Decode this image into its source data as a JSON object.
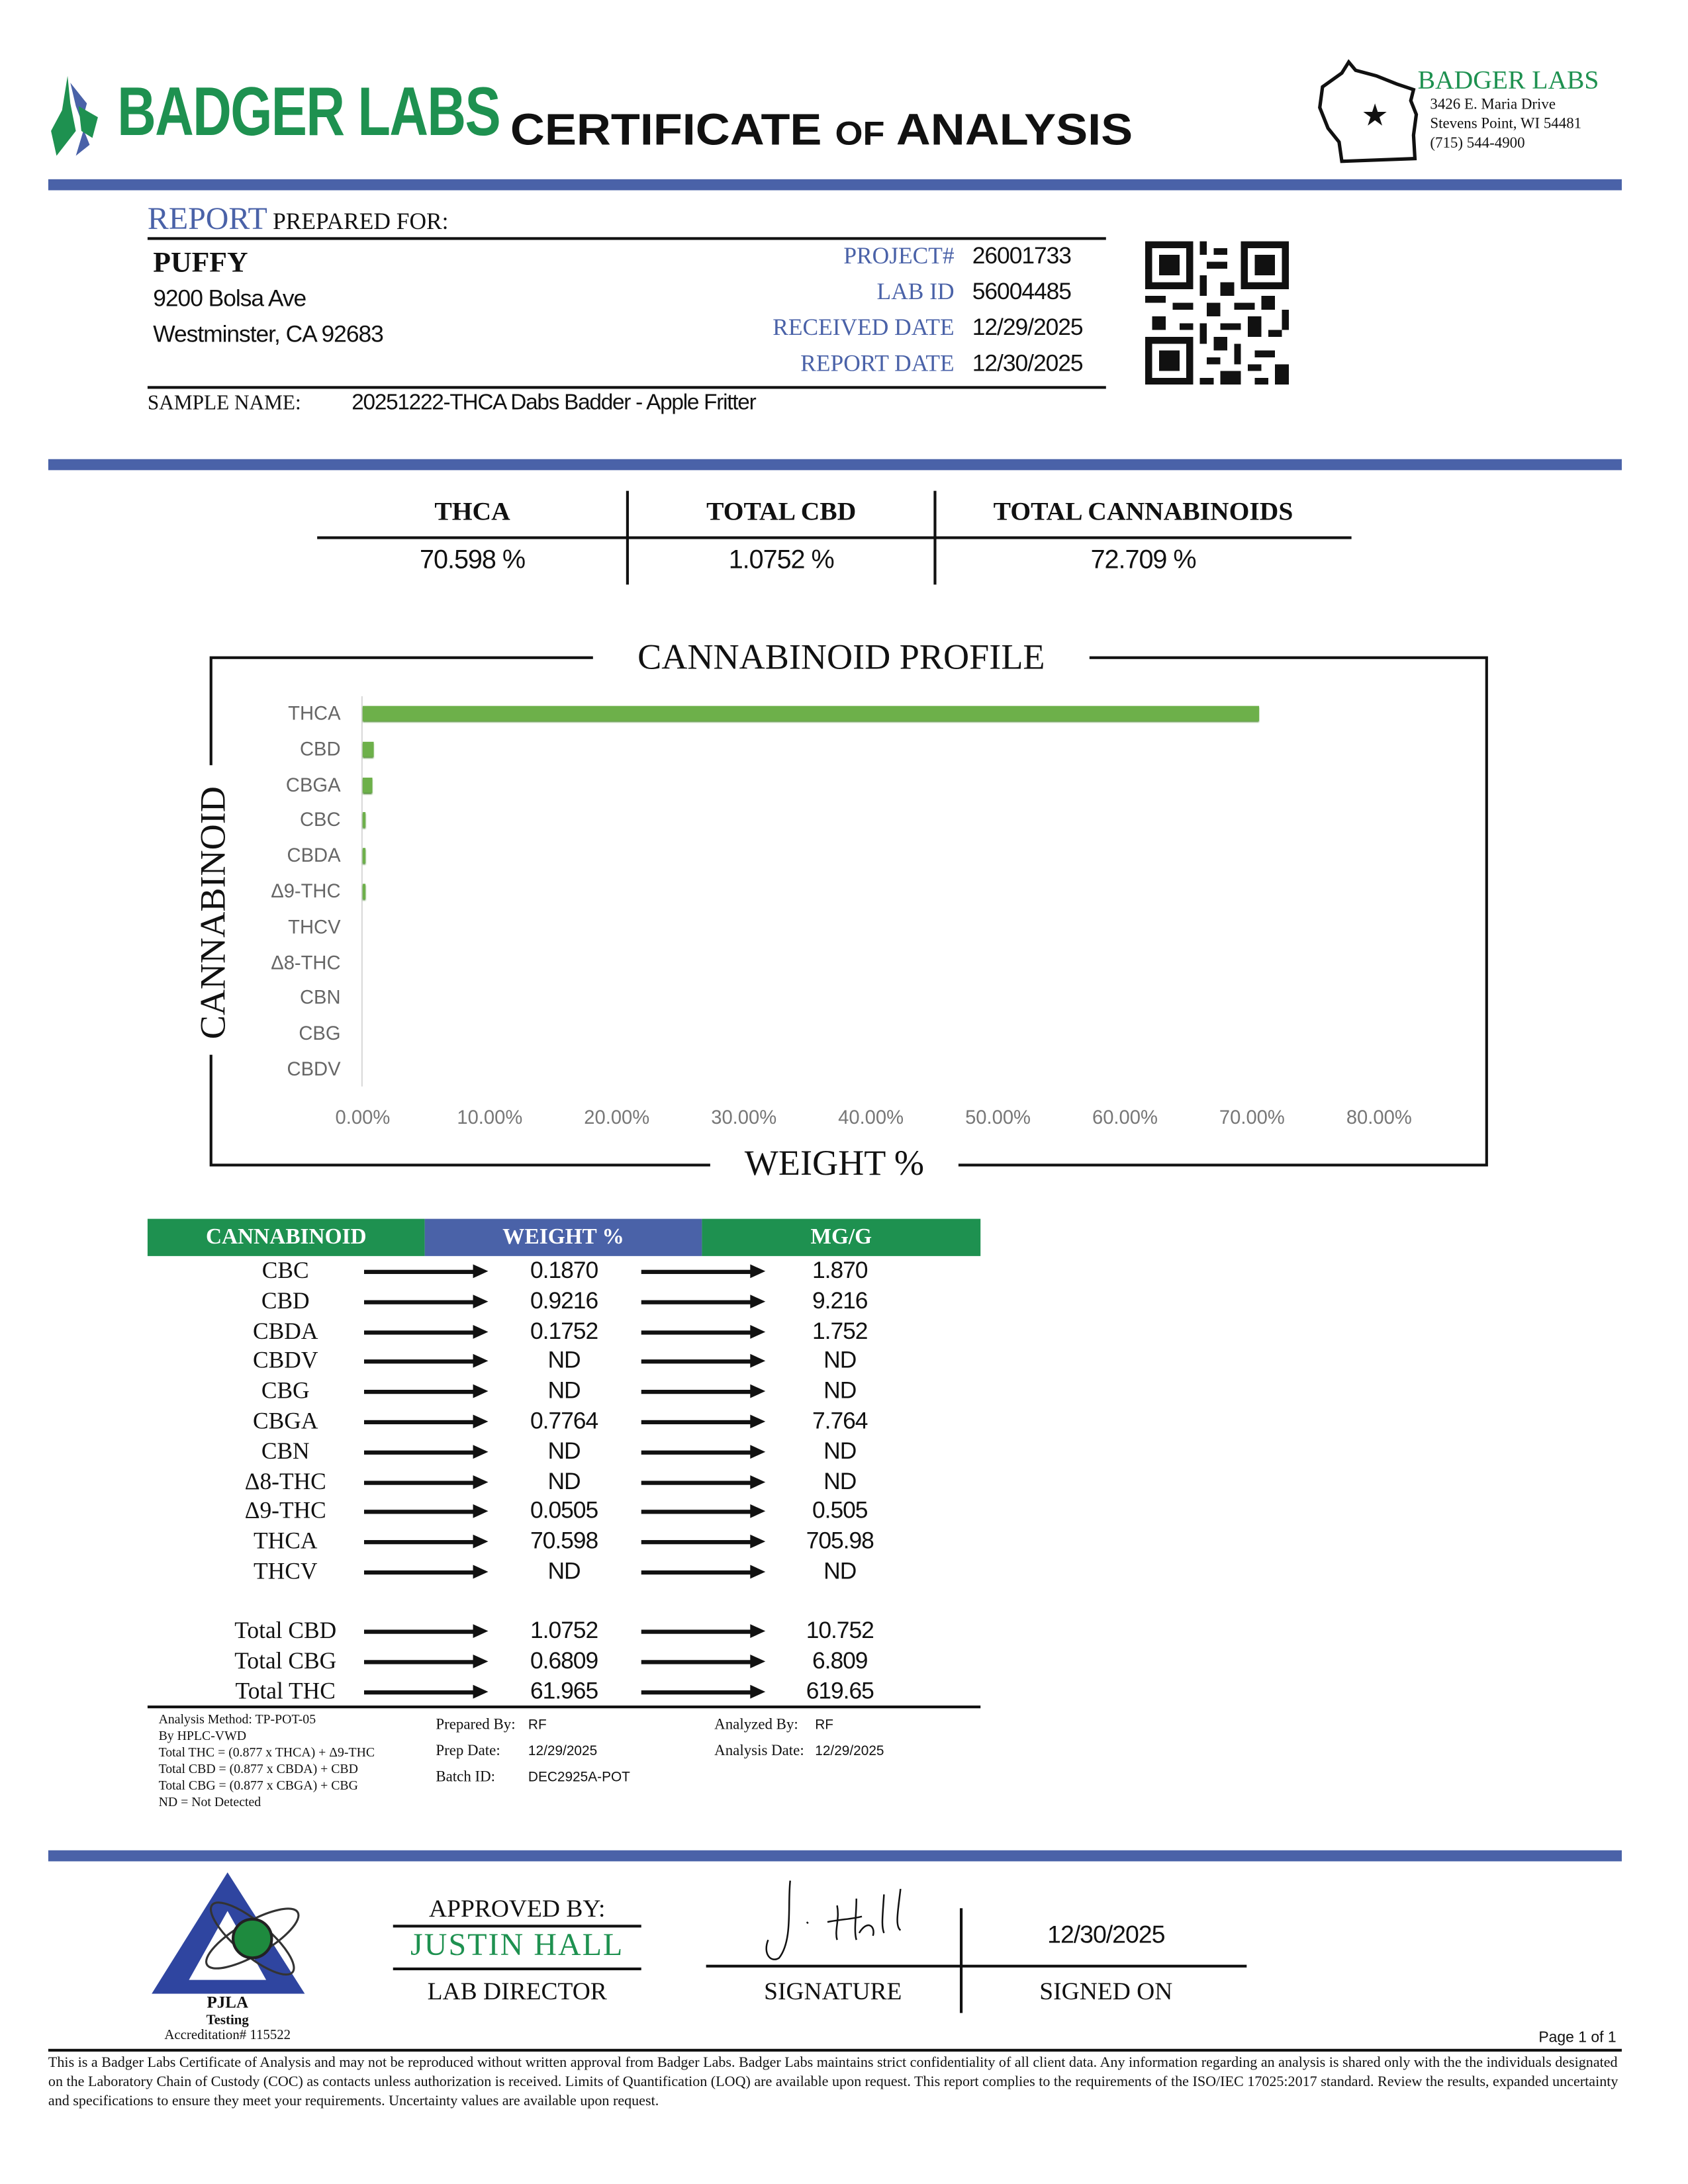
{
  "header": {
    "logo_text": "BADGER LABS",
    "title_part1": "CERTIFICATE",
    "title_of": "of",
    "title_part2": "ANALYSIS",
    "lab_name": "BADGER LABS",
    "address1": "3426 E. Maria Drive",
    "address2": "Stevens Point, WI 54481",
    "phone": "(715) 544-4900",
    "brand_green": "#1e9150",
    "brand_blue": "#4a62a8"
  },
  "client": {
    "report_label": "REPORT",
    "prepared_for_label": "PREPARED FOR:",
    "name": "PUFFY",
    "street": "9200 Bolsa Ave",
    "city": "Westminster, CA 92683",
    "sample_name_label": "SAMPLE NAME:",
    "sample_name": "20251222-THCA Dabs Badder - Apple Fritter"
  },
  "meta": [
    {
      "label": "PROJECT#",
      "value": "26001733"
    },
    {
      "label": "LAB ID",
      "value": "56004485"
    },
    {
      "label": "RECEIVED DATE",
      "value": "12/29/2025"
    },
    {
      "label": "REPORT DATE",
      "value": "12/30/2025"
    }
  ],
  "summary": [
    {
      "label": "THCA",
      "value": "70.598 %"
    },
    {
      "label": "TOTAL CBD",
      "value": "1.0752 %"
    },
    {
      "label": "TOTAL CANNABINOIDS",
      "value": "72.709 %"
    }
  ],
  "chart_data": {
    "type": "bar",
    "orientation": "horizontal",
    "title": "CANNABINOID PROFILE",
    "xlabel": "WEIGHT %",
    "ylabel": "CANNABINOID",
    "categories": [
      "THCA",
      "CBD",
      "CBGA",
      "CBC",
      "CBDA",
      "Δ9-THC",
      "THCV",
      "Δ8-THC",
      "CBN",
      "CBG",
      "CBDV"
    ],
    "values": [
      70.598,
      0.9216,
      0.7764,
      0.187,
      0.1752,
      0.0505,
      0,
      0,
      0,
      0,
      0
    ],
    "xlim": [
      0,
      80
    ],
    "xticks": [
      "0.00%",
      "10.00%",
      "20.00%",
      "30.00%",
      "40.00%",
      "50.00%",
      "60.00%",
      "70.00%",
      "80.00%"
    ],
    "grid": false,
    "bar_color": "#6db04a"
  },
  "table": {
    "headers": [
      "CANNABINOID",
      "WEIGHT %",
      "MG/G"
    ],
    "rows": [
      {
        "name": "CBC",
        "weight": "0.1870",
        "mg": "1.870"
      },
      {
        "name": "CBD",
        "weight": "0.9216",
        "mg": "9.216"
      },
      {
        "name": "CBDA",
        "weight": "0.1752",
        "mg": "1.752"
      },
      {
        "name": "CBDV",
        "weight": "ND",
        "mg": "ND"
      },
      {
        "name": "CBG",
        "weight": "ND",
        "mg": "ND"
      },
      {
        "name": "CBGA",
        "weight": "0.7764",
        "mg": "7.764"
      },
      {
        "name": "CBN",
        "weight": "ND",
        "mg": "ND"
      },
      {
        "name": "Δ8-THC",
        "weight": "ND",
        "mg": "ND"
      },
      {
        "name": "Δ9-THC",
        "weight": "0.0505",
        "mg": "0.505"
      },
      {
        "name": "THCA",
        "weight": "70.598",
        "mg": "705.98"
      },
      {
        "name": "THCV",
        "weight": "ND",
        "mg": "ND"
      }
    ],
    "totals": [
      {
        "name": "Total CBD",
        "weight": "1.0752",
        "mg": "10.752"
      },
      {
        "name": "Total CBG",
        "weight": "0.6809",
        "mg": "6.809"
      },
      {
        "name": "Total THC",
        "weight": "61.965",
        "mg": "619.65"
      }
    ]
  },
  "notes": {
    "lines": [
      "Analysis Method: TP-POT-05",
      "By HPLC-VWD",
      "Total THC = (0.877 x  THCA) + Δ9-THC",
      "Total CBD = (0.877 x  CBDA) + CBD",
      "Total CBG = (0.877 x  CBGA) + CBG",
      "ND = Not Detected"
    ],
    "prepared_by_label": "Prepared By:",
    "prepared_by": "RF",
    "prep_date_label": "Prep Date:",
    "prep_date": "12/29/2025",
    "batch_label": "Batch ID:",
    "batch": "DEC2925A-POT",
    "analyzed_by_label": "Analyzed By:",
    "analyzed_by": "RF",
    "analysis_date_label": "Analysis Date:",
    "analysis_date": "12/29/2025"
  },
  "approval": {
    "pjla": "PJLA",
    "pjla_sub": "Testing",
    "accreditation": "Accreditation# 115522",
    "approved_by_label": "APPROVED BY:",
    "approver": "JUSTIN HALL",
    "approver_title": "LAB DIRECTOR",
    "signature_label": "SIGNATURE",
    "signed_on_label": "SIGNED ON",
    "signed_date": "12/30/2025"
  },
  "footer": {
    "page": "Page 1 of 1",
    "disclaimer": "This is a Badger Labs Certificate of Analysis and may not be reproduced without written approval from Badger Labs. Badger Labs maintains strict confidentiality of all client data. Any information regarding an analysis is shared only with the the individuals designated on the Laboratory Chain of Custody (COC) as contacts unless authorization is received. Limits of Quantification (LOQ) are available upon request. This report complies to the requirements of the ISO/IEC 17025:2017 standard. Review the results, expanded uncertainty and specifications to ensure they meet your requirements. Uncertainty values are available upon request."
  }
}
